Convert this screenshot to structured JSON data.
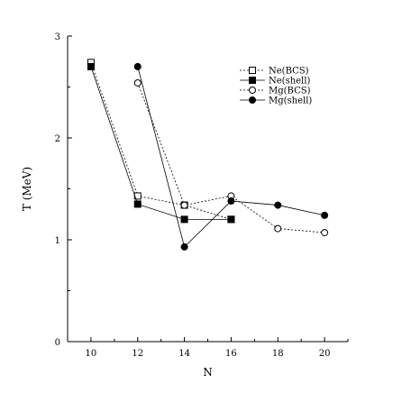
{
  "chart_data": {
    "type": "line",
    "xlabel": "N",
    "ylabel": "T (MeV)",
    "xlim": [
      9,
      21
    ],
    "ylim": [
      0,
      3
    ],
    "xticks": [
      10,
      12,
      14,
      16,
      18,
      20
    ],
    "yticks": [
      0,
      1,
      2,
      3
    ],
    "legend_position": "top-right",
    "series": [
      {
        "name": "Ne(BCS)",
        "line": "dotted",
        "marker": "open-square",
        "x": [
          10,
          12,
          14,
          16
        ],
        "y": [
          2.74,
          1.43,
          1.34,
          1.2
        ]
      },
      {
        "name": "Ne(shell)",
        "line": "solid",
        "marker": "filled-square",
        "x": [
          10,
          12,
          14,
          16
        ],
        "y": [
          2.7,
          1.35,
          1.2,
          1.2
        ]
      },
      {
        "name": "Mg(BCS)",
        "line": "dotted",
        "marker": "open-circle",
        "x": [
          12,
          14,
          16,
          18,
          20
        ],
        "y": [
          2.54,
          1.34,
          1.43,
          1.11,
          1.07
        ]
      },
      {
        "name": "Mg(shell)",
        "line": "solid",
        "marker": "filled-circle",
        "x": [
          12,
          14,
          16,
          18,
          20
        ],
        "y": [
          2.7,
          0.93,
          1.38,
          1.34,
          1.24
        ]
      }
    ]
  }
}
